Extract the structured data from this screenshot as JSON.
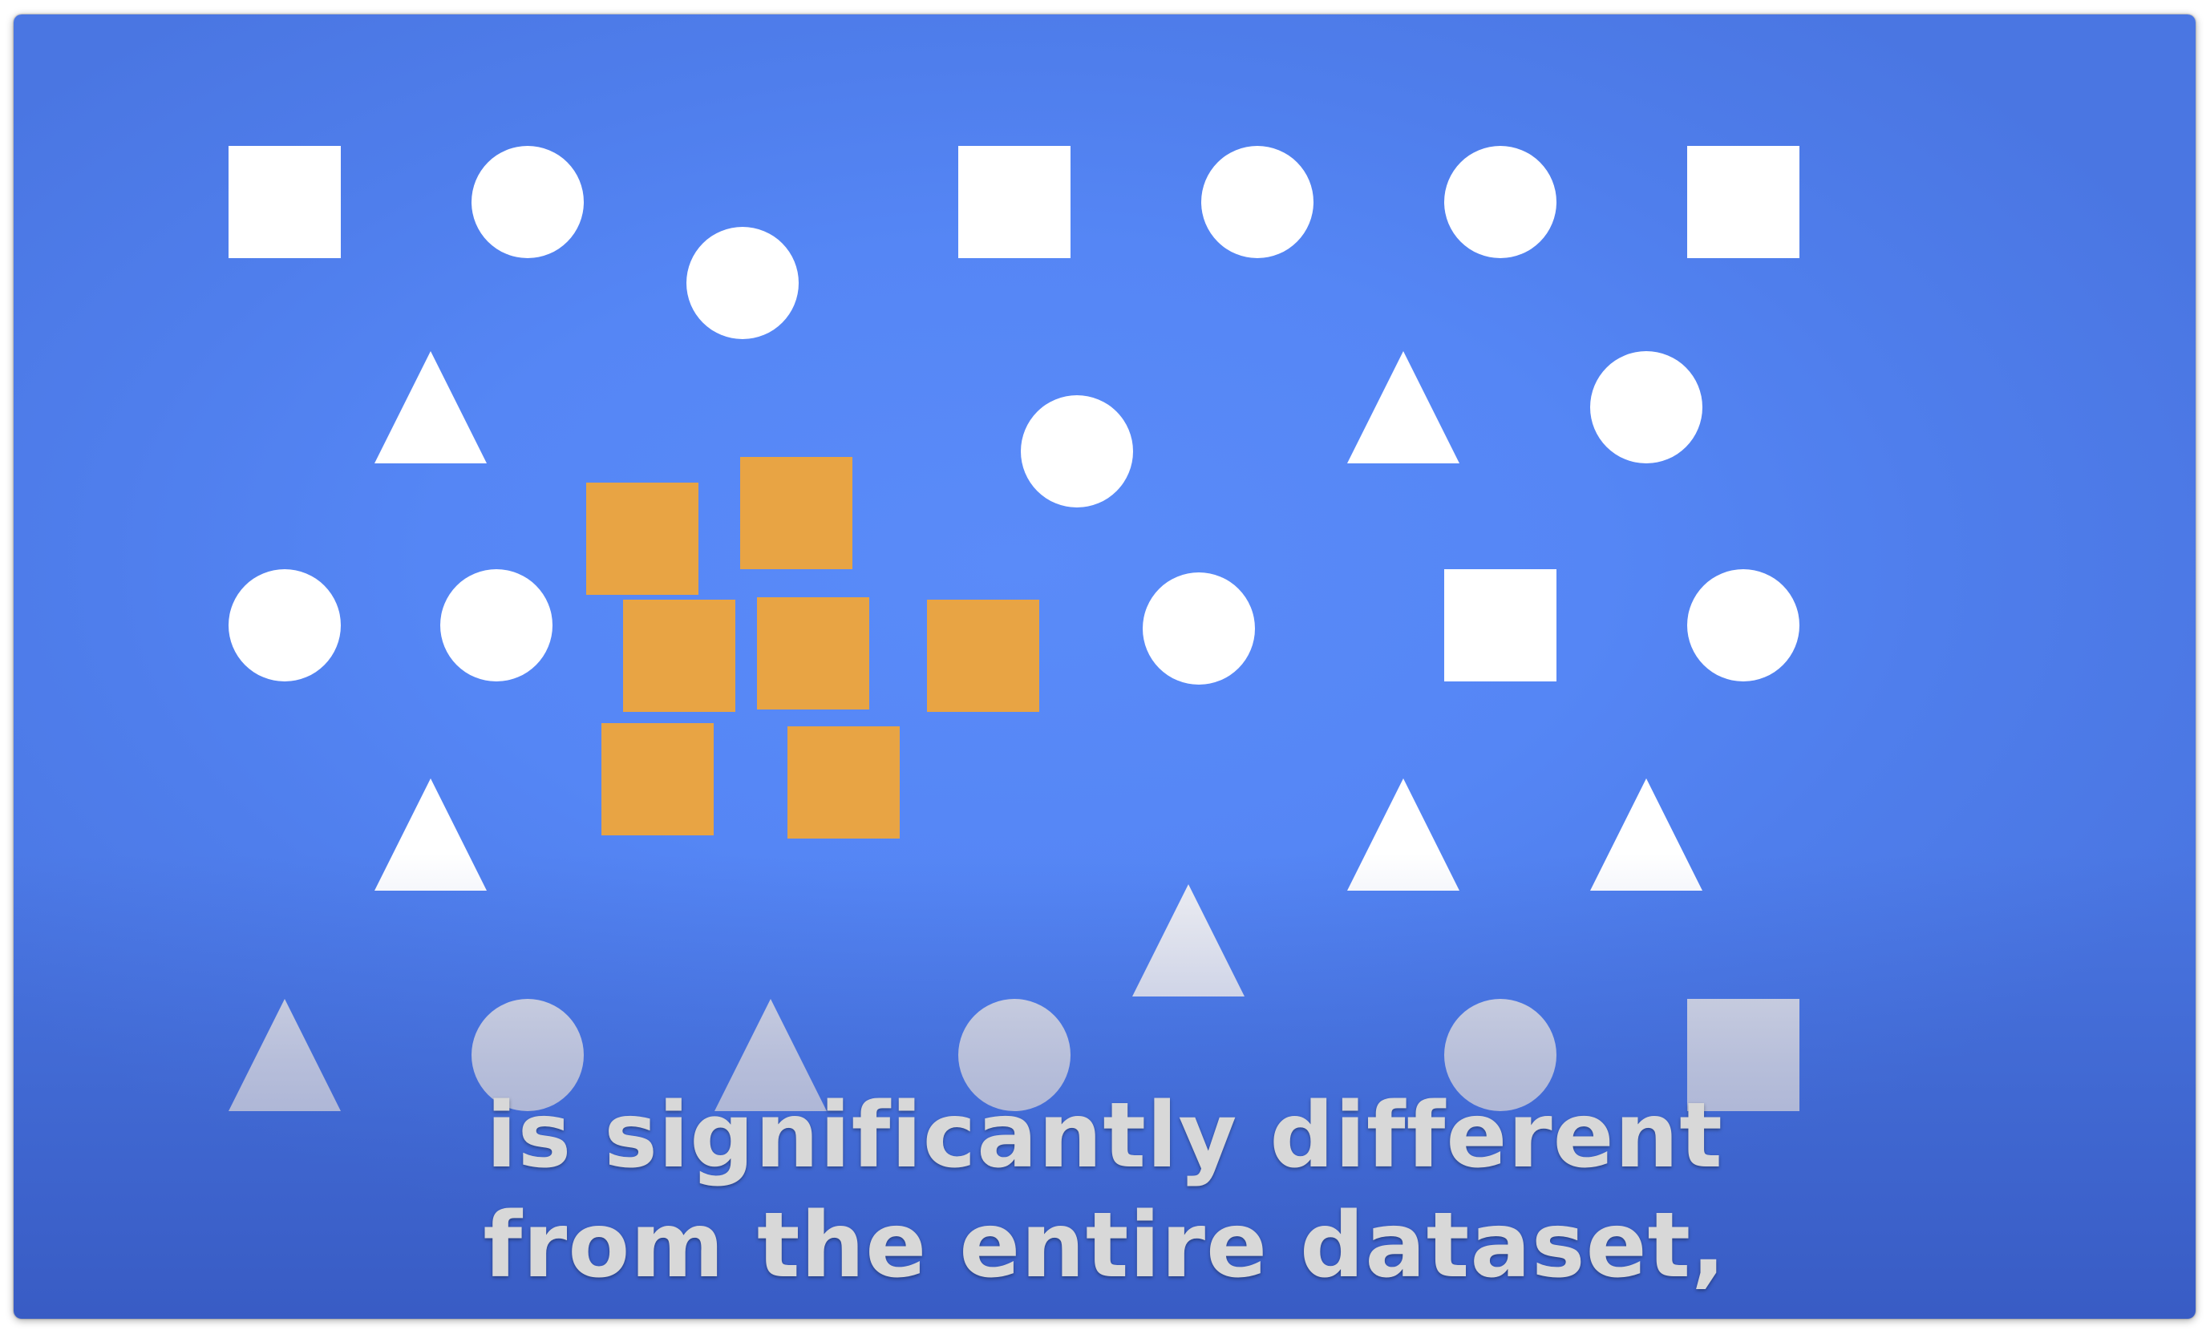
{
  "video": {
    "background_color": "#5586f5",
    "shape_color": "#ffffff",
    "highlight_color": "#e8a444",
    "shapes": [
      {
        "kind": "square-icon"
      },
      {
        "kind": "circle-icon"
      },
      {
        "kind": "circle-icon"
      },
      {
        "kind": "square-icon"
      },
      {
        "kind": "circle-icon"
      },
      {
        "kind": "circle-icon"
      },
      {
        "kind": "square-icon"
      },
      {
        "kind": "triangle-icon"
      },
      {
        "kind": "circle-icon"
      },
      {
        "kind": "triangle-icon"
      },
      {
        "kind": "circle-icon"
      },
      {
        "kind": "circle-icon"
      },
      {
        "kind": "circle-icon"
      },
      {
        "kind": "circle-icon"
      },
      {
        "kind": "square-icon"
      },
      {
        "kind": "circle-icon"
      },
      {
        "kind": "triangle-icon"
      },
      {
        "kind": "triangle-icon"
      },
      {
        "kind": "triangle-icon"
      },
      {
        "kind": "triangle-icon"
      },
      {
        "kind": "triangle-icon"
      },
      {
        "kind": "circle-icon"
      },
      {
        "kind": "triangle-icon"
      },
      {
        "kind": "circle-icon"
      },
      {
        "kind": "circle-icon"
      },
      {
        "kind": "square-icon"
      }
    ],
    "highlighted_cluster": {
      "count": 7,
      "kind": "square-icon",
      "color": "#e8a444"
    }
  },
  "subtitles": {
    "line1": "is significantly different",
    "line2": "from the entire dataset,"
  }
}
